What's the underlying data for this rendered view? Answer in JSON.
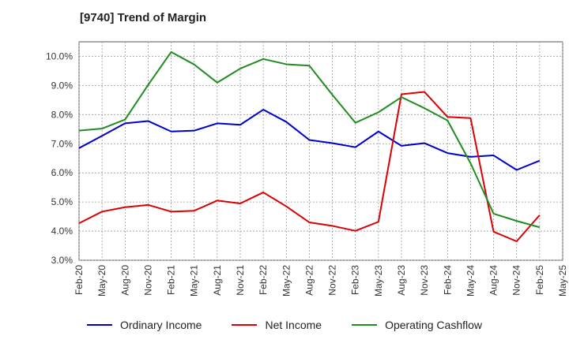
{
  "chart_data": {
    "type": "line",
    "title": "[9740]  Trend of Margin",
    "xlabel": "",
    "ylabel": "",
    "ylim": [
      3.0,
      10.5
    ],
    "yticks": [
      "3.0%",
      "4.0%",
      "5.0%",
      "6.0%",
      "7.0%",
      "8.0%",
      "9.0%",
      "10.0%"
    ],
    "ytick_values": [
      3,
      4,
      5,
      6,
      7,
      8,
      9,
      10
    ],
    "x": [
      "Feb-20",
      "May-20",
      "Aug-20",
      "Nov-20",
      "Feb-21",
      "May-21",
      "Aug-21",
      "Nov-21",
      "Feb-22",
      "May-22",
      "Aug-22",
      "Nov-22",
      "Feb-23",
      "May-23",
      "Aug-23",
      "Nov-23",
      "Feb-24",
      "May-24",
      "Aug-24",
      "Nov-24",
      "Feb-25",
      "May-25"
    ],
    "grid": true,
    "legend_position": "bottom",
    "series": [
      {
        "name": "Ordinary Income",
        "color": "#0000cc",
        "values": [
          6.85,
          7.27,
          7.7,
          7.78,
          7.42,
          7.45,
          7.7,
          7.65,
          8.17,
          7.75,
          7.13,
          7.02,
          6.88,
          7.42,
          6.93,
          7.02,
          6.68,
          6.55,
          6.6,
          6.1,
          6.42,
          null
        ]
      },
      {
        "name": "Net Income",
        "color": "#dd0000",
        "values": [
          4.27,
          4.67,
          4.82,
          4.9,
          4.67,
          4.7,
          5.05,
          4.95,
          5.33,
          4.85,
          4.3,
          4.18,
          4.01,
          4.32,
          8.7,
          8.78,
          7.92,
          7.88,
          3.98,
          3.65,
          4.55,
          null
        ]
      },
      {
        "name": "Operating Cashflow",
        "color": "#228b22",
        "values": [
          7.45,
          7.52,
          7.83,
          9.02,
          10.15,
          9.72,
          9.1,
          9.58,
          9.91,
          9.73,
          9.68,
          8.68,
          7.72,
          8.08,
          8.6,
          8.22,
          7.8,
          6.33,
          4.6,
          4.35,
          4.13,
          null
        ]
      }
    ]
  }
}
